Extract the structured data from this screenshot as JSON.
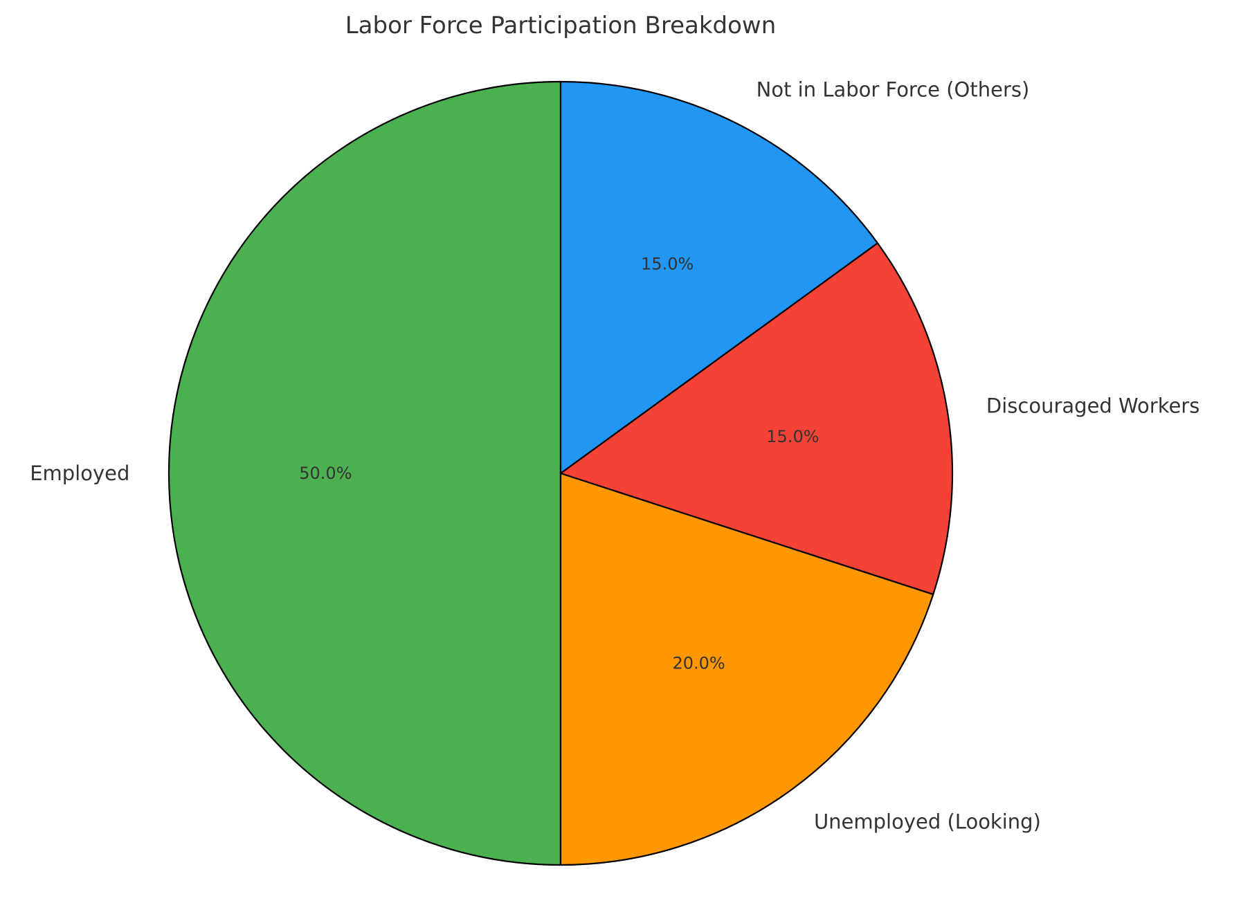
{
  "chart_data": {
    "type": "pie",
    "title": "Labor Force Participation Breakdown",
    "slices": [
      {
        "label": "Employed",
        "value": 50.0,
        "pct_label": "50.0%",
        "color": "#4caf50"
      },
      {
        "label": "Unemployed (Looking)",
        "value": 20.0,
        "pct_label": "20.0%",
        "color": "#ff9800"
      },
      {
        "label": "Discouraged Workers",
        "value": 15.0,
        "pct_label": "15.0%",
        "color": "#f44336"
      },
      {
        "label": "Not in Labor Force (Others)",
        "value": 15.0,
        "pct_label": "15.0%",
        "color": "#2196f3"
      }
    ],
    "start_angle_deg": 90,
    "direction": "counterclockwise",
    "edge_color": "#000000",
    "text_color": "#333333"
  }
}
